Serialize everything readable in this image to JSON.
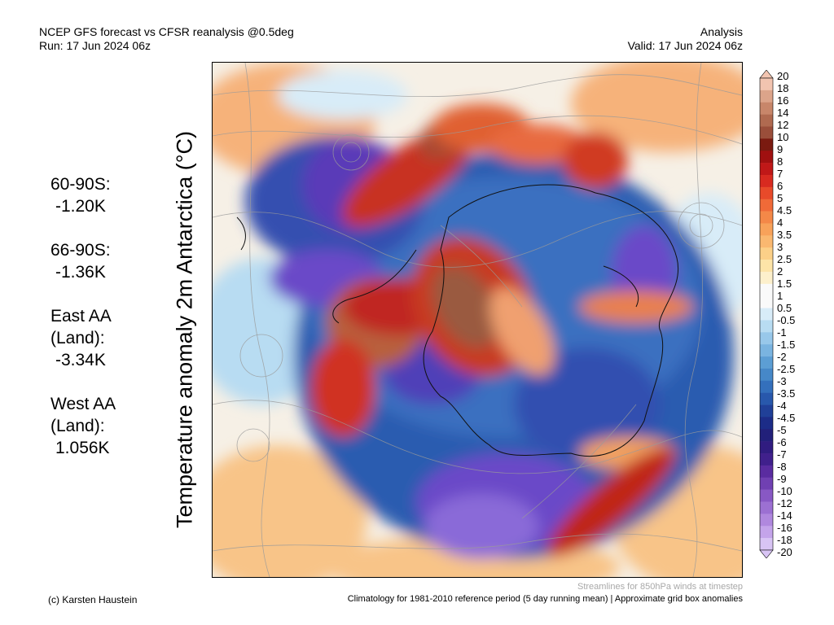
{
  "header": {
    "left_line1": "NCEP GFS forecast vs CFSR reanalysis @0.5deg",
    "left_line2": "Run: 17 Jun 2024 06z",
    "right_line1": "Analysis",
    "right_line2": "Valid: 17 Jun 2024 06z"
  },
  "vertical_title": "Temperature anomaly 2m Antarctica (°C)",
  "stats": [
    {
      "label": "60-90S:",
      "value": "-1.20K"
    },
    {
      "label": "66-90S:",
      "value": "-1.36K"
    },
    {
      "label": "East AA\n(Land):",
      "value": "-3.34K"
    },
    {
      "label": "West AA\n(Land):",
      "value": "1.056K"
    }
  ],
  "colorbar": {
    "labels": [
      "20",
      "18",
      "16",
      "14",
      "12",
      "10",
      "9",
      "8",
      "7",
      "6",
      "5",
      "4.5",
      "4",
      "3.5",
      "3",
      "2.5",
      "2",
      "1.5",
      "1",
      "0.5",
      "-0.5",
      "-1",
      "-1.5",
      "-2",
      "-2.5",
      "-3",
      "-3.5",
      "-4",
      "-4.5",
      "-5",
      "-6",
      "-7",
      "-8",
      "-9",
      "-10",
      "-12",
      "-14",
      "-16",
      "-18",
      "-20"
    ],
    "colors": [
      "#f2c4b0",
      "#dca48a",
      "#c8866a",
      "#b06a50",
      "#9a4e3a",
      "#7a1a10",
      "#a01010",
      "#c01818",
      "#d82a20",
      "#e84a2a",
      "#f06a38",
      "#f48848",
      "#f8a25a",
      "#fab870",
      "#fcd088",
      "#fde4a8",
      "#fdf0cc",
      "#fafafa",
      "#fafafa",
      "#d8ecf8",
      "#b8dcf2",
      "#98c8ea",
      "#7ab4e0",
      "#5c9ed4",
      "#4688c8",
      "#3470bc",
      "#2858ac",
      "#204098",
      "#1c2c88",
      "#22207a",
      "#301c80",
      "#40208c",
      "#5a2ca0",
      "#7040b2",
      "#8858c4",
      "#9c70d2",
      "#b088de",
      "#c4a4ea",
      "#d8c4f4"
    ],
    "top_arrow_color": "#f2c4b0",
    "bottom_arrow_color": "#d8c4f4"
  },
  "map": {
    "title": "",
    "continent_outline_color": "#111111",
    "streamline_color": "#9a9a9a"
  },
  "footer": {
    "credit": "(c) Karsten Haustein",
    "climatology_note": "Climatology for 1981-2010 reference period (5 day running mean) | Approximate grid box anomalies",
    "streamlines_note": "Streamlines for 850hPa winds at timestep"
  }
}
